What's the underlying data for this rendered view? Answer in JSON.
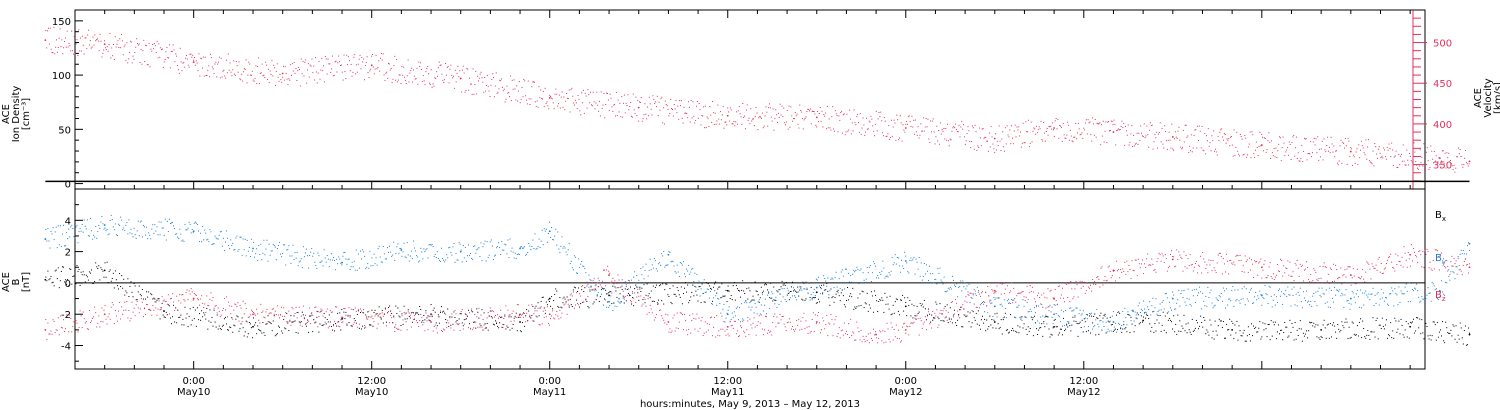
{
  "chart_data": [
    {
      "type": "scatter",
      "panel": "top",
      "ylabel_left": [
        "ACE",
        "Ion Density",
        "[cm⁻³]"
      ],
      "ylabel_right": [
        "ACE",
        "Velocity",
        "[km/s]"
      ],
      "ylim_left": [
        -5,
        160
      ],
      "left_ticks": [
        "0",
        "50",
        "100",
        "150"
      ],
      "right_axis": {
        "ticks": [
          "350",
          "400",
          "450",
          "500"
        ],
        "tick_values": [
          350,
          400,
          450,
          500
        ],
        "minor_step": 10,
        "range": [
          320,
          540
        ],
        "color": "#e0315c"
      },
      "series": [
        {
          "name": "Velocity",
          "axis": "right",
          "color": "#e0315c",
          "points": [
            [
              -10,
              503
            ],
            [
              -6,
              498
            ],
            [
              0,
              476
            ],
            [
              6,
              462
            ],
            [
              12,
              472
            ],
            [
              18,
              456
            ],
            [
              24,
              432
            ],
            [
              30,
              420
            ],
            [
              36,
              410
            ],
            [
              42,
              408
            ],
            [
              48,
              395
            ],
            [
              54,
              382
            ],
            [
              58,
              395
            ],
            [
              62,
              390
            ],
            [
              66,
              384
            ],
            [
              72,
              374
            ],
            [
              78,
              366
            ],
            [
              84,
              358
            ],
            [
              86,
              354
            ]
          ]
        },
        {
          "name": "Ion Density",
          "axis": "left",
          "color": "#000000",
          "points": [
            [
              -10,
              2
            ],
            [
              10,
              2
            ],
            [
              30,
              2
            ],
            [
              50,
              2
            ],
            [
              70,
              2
            ],
            [
              86,
              2
            ]
          ]
        }
      ]
    },
    {
      "type": "scatter",
      "panel": "bottom",
      "ylabel_left": [
        "ACE",
        "B",
        "[nT]"
      ],
      "ylim": [
        -5.5,
        6
      ],
      "left_ticks": [
        "-4",
        "-2",
        "0",
        "2",
        "4"
      ],
      "left_tick_values": [
        -4,
        -2,
        0,
        2,
        4
      ],
      "zero_line": true,
      "legend_position": "right",
      "series": [
        {
          "name": "Bx",
          "label_main": "B",
          "label_sub": "x",
          "color": "#000000",
          "points": [
            [
              -10,
              0.2
            ],
            [
              -6,
              0.8
            ],
            [
              -2,
              -1.8
            ],
            [
              4,
              -2.8
            ],
            [
              10,
              -2.3
            ],
            [
              16,
              -2.0
            ],
            [
              22,
              -2.5
            ],
            [
              24,
              -1.0
            ],
            [
              28,
              -0.8
            ],
            [
              36,
              -0.5
            ],
            [
              42,
              -0.6
            ],
            [
              48,
              -1.5
            ],
            [
              54,
              -2.5
            ],
            [
              58,
              -2.8
            ],
            [
              64,
              -2.4
            ],
            [
              70,
              -3.0
            ],
            [
              76,
              -3.0
            ],
            [
              82,
              -2.8
            ],
            [
              86,
              -3.3
            ]
          ]
        },
        {
          "name": "By",
          "label_main": "B",
          "label_sub": "y",
          "color": "#1a7fd6",
          "points": [
            [
              -10,
              2.8
            ],
            [
              -6,
              3.7
            ],
            [
              0,
              3.3
            ],
            [
              4,
              2.2
            ],
            [
              10,
              1.3
            ],
            [
              14,
              2.1
            ],
            [
              18,
              2.0
            ],
            [
              22,
              2.2
            ],
            [
              24,
              3.3
            ],
            [
              28,
              -1.2
            ],
            [
              32,
              1.8
            ],
            [
              36,
              -2.0
            ],
            [
              42,
              -0.3
            ],
            [
              48,
              1.4
            ],
            [
              54,
              -1.5
            ],
            [
              58,
              -2.0
            ],
            [
              62,
              -2.5
            ],
            [
              66,
              -1.0
            ],
            [
              72,
              -0.8
            ],
            [
              78,
              -1.0
            ],
            [
              84,
              -0.5
            ],
            [
              86,
              2.5
            ]
          ]
        },
        {
          "name": "Bz",
          "label_main": "B",
          "label_sub": "z",
          "color": "#e0315c",
          "points": [
            [
              -10,
              -3.0
            ],
            [
              -6,
              -2.0
            ],
            [
              0,
              -1.0
            ],
            [
              4,
              -2.0
            ],
            [
              10,
              -2.2
            ],
            [
              16,
              -2.5
            ],
            [
              22,
              -2.0
            ],
            [
              24,
              -2.0
            ],
            [
              28,
              0.5
            ],
            [
              32,
              -2.5
            ],
            [
              36,
              -2.8
            ],
            [
              42,
              -2.5
            ],
            [
              46,
              -3.3
            ],
            [
              48,
              -3.0
            ],
            [
              54,
              -0.5
            ],
            [
              58,
              -1.0
            ],
            [
              62,
              0.8
            ],
            [
              66,
              1.5
            ],
            [
              72,
              1.0
            ],
            [
              78,
              0.5
            ],
            [
              82,
              1.8
            ],
            [
              86,
              1.0
            ]
          ]
        }
      ]
    }
  ],
  "x_axis": {
    "ticks": [
      {
        "time": "0:00",
        "date": "May10",
        "hour": 0
      },
      {
        "time": "12:00",
        "date": "May10",
        "hour": 12
      },
      {
        "time": "0:00",
        "date": "May11",
        "hour": 24
      },
      {
        "time": "12:00",
        "date": "May11",
        "hour": 36
      },
      {
        "time": "0:00",
        "date": "May12",
        "hour": 48
      },
      {
        "time": "12:00",
        "date": "May12",
        "hour": 60
      }
    ],
    "range_hours": [
      -8,
      83
    ],
    "label": "hours:minutes,  May  9, 2013 – May 12, 2013"
  }
}
